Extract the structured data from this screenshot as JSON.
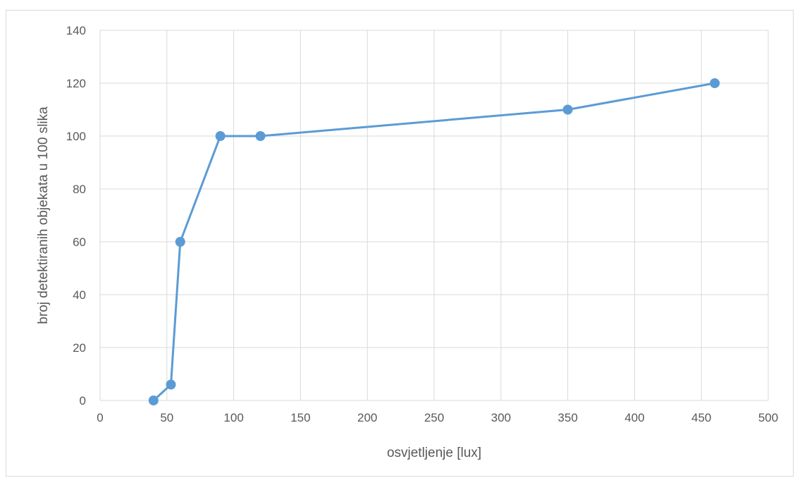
{
  "chart_data": {
    "type": "line",
    "title": "",
    "xlabel": "osvjetljenje [lux]",
    "ylabel": "broj detektiranih objekata u 100 slika",
    "xlim": [
      0,
      500
    ],
    "ylim": [
      0,
      140
    ],
    "xticks": [
      0,
      50,
      100,
      150,
      200,
      250,
      300,
      350,
      400,
      450,
      500
    ],
    "yticks": [
      0,
      20,
      40,
      60,
      80,
      100,
      120,
      140
    ],
    "grid": true,
    "legend": "none",
    "series": [
      {
        "color": "#5b9bd5",
        "markers": true,
        "points": [
          {
            "x": 40,
            "y": 0
          },
          {
            "x": 53,
            "y": 6
          },
          {
            "x": 60,
            "y": 60
          },
          {
            "x": 90,
            "y": 100
          },
          {
            "x": 120,
            "y": 100
          },
          {
            "x": 350,
            "y": 110
          },
          {
            "x": 460,
            "y": 120
          }
        ]
      }
    ],
    "gridline_color": "#d9d9d9",
    "text_color": "#595959"
  }
}
